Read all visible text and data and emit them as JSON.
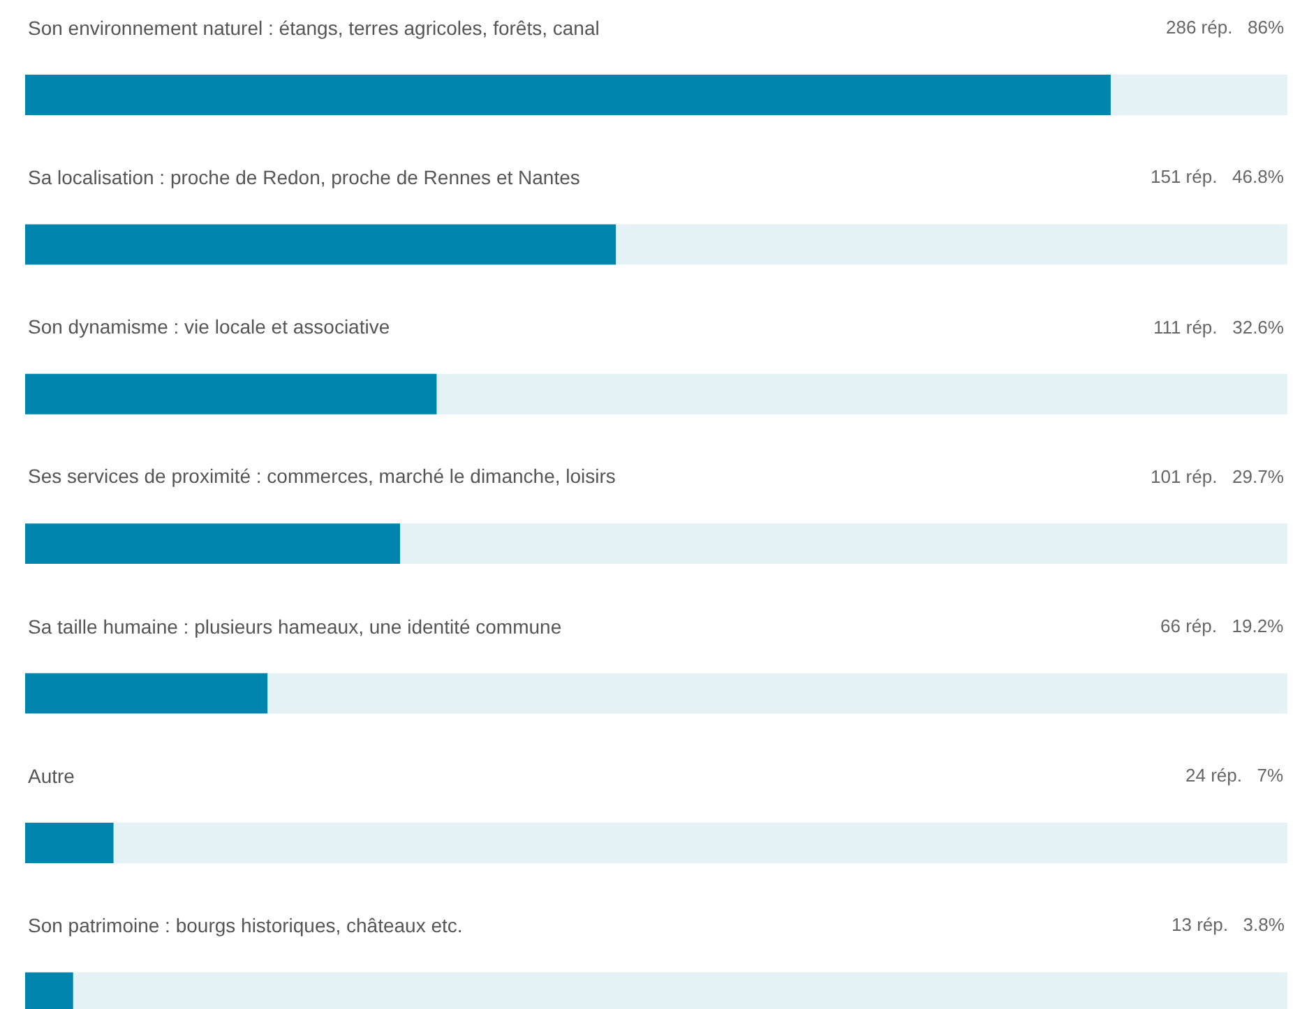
{
  "chart_data": {
    "type": "bar",
    "orientation": "horizontal",
    "categories": [
      "Son environnement naturel : étangs, terres agricoles, forêts, canal",
      "Sa localisation : proche de Redon, proche de Rennes et Nantes",
      "Son dynamisme : vie locale et associative",
      "Ses services de proximité : commerces, marché le dimanche, loisirs",
      "Sa taille humaine : plusieurs hameaux, une identité commune",
      "Autre",
      "Son patrimoine : bourgs historiques, châteaux etc."
    ],
    "values": [
      86,
      46.8,
      32.6,
      29.7,
      19.2,
      7,
      3.8
    ],
    "value_labels": [
      "286 rép.   86%",
      "151 rép.   46.8%",
      "111 rép.   32.6%",
      "101 rép.   29.7%",
      "66 rép.   19.2%",
      "24 rép.   7%",
      "13 rép.   3.8%"
    ],
    "color": "#0086ae",
    "xlim": [
      0,
      100
    ],
    "tick_labels": false
  }
}
